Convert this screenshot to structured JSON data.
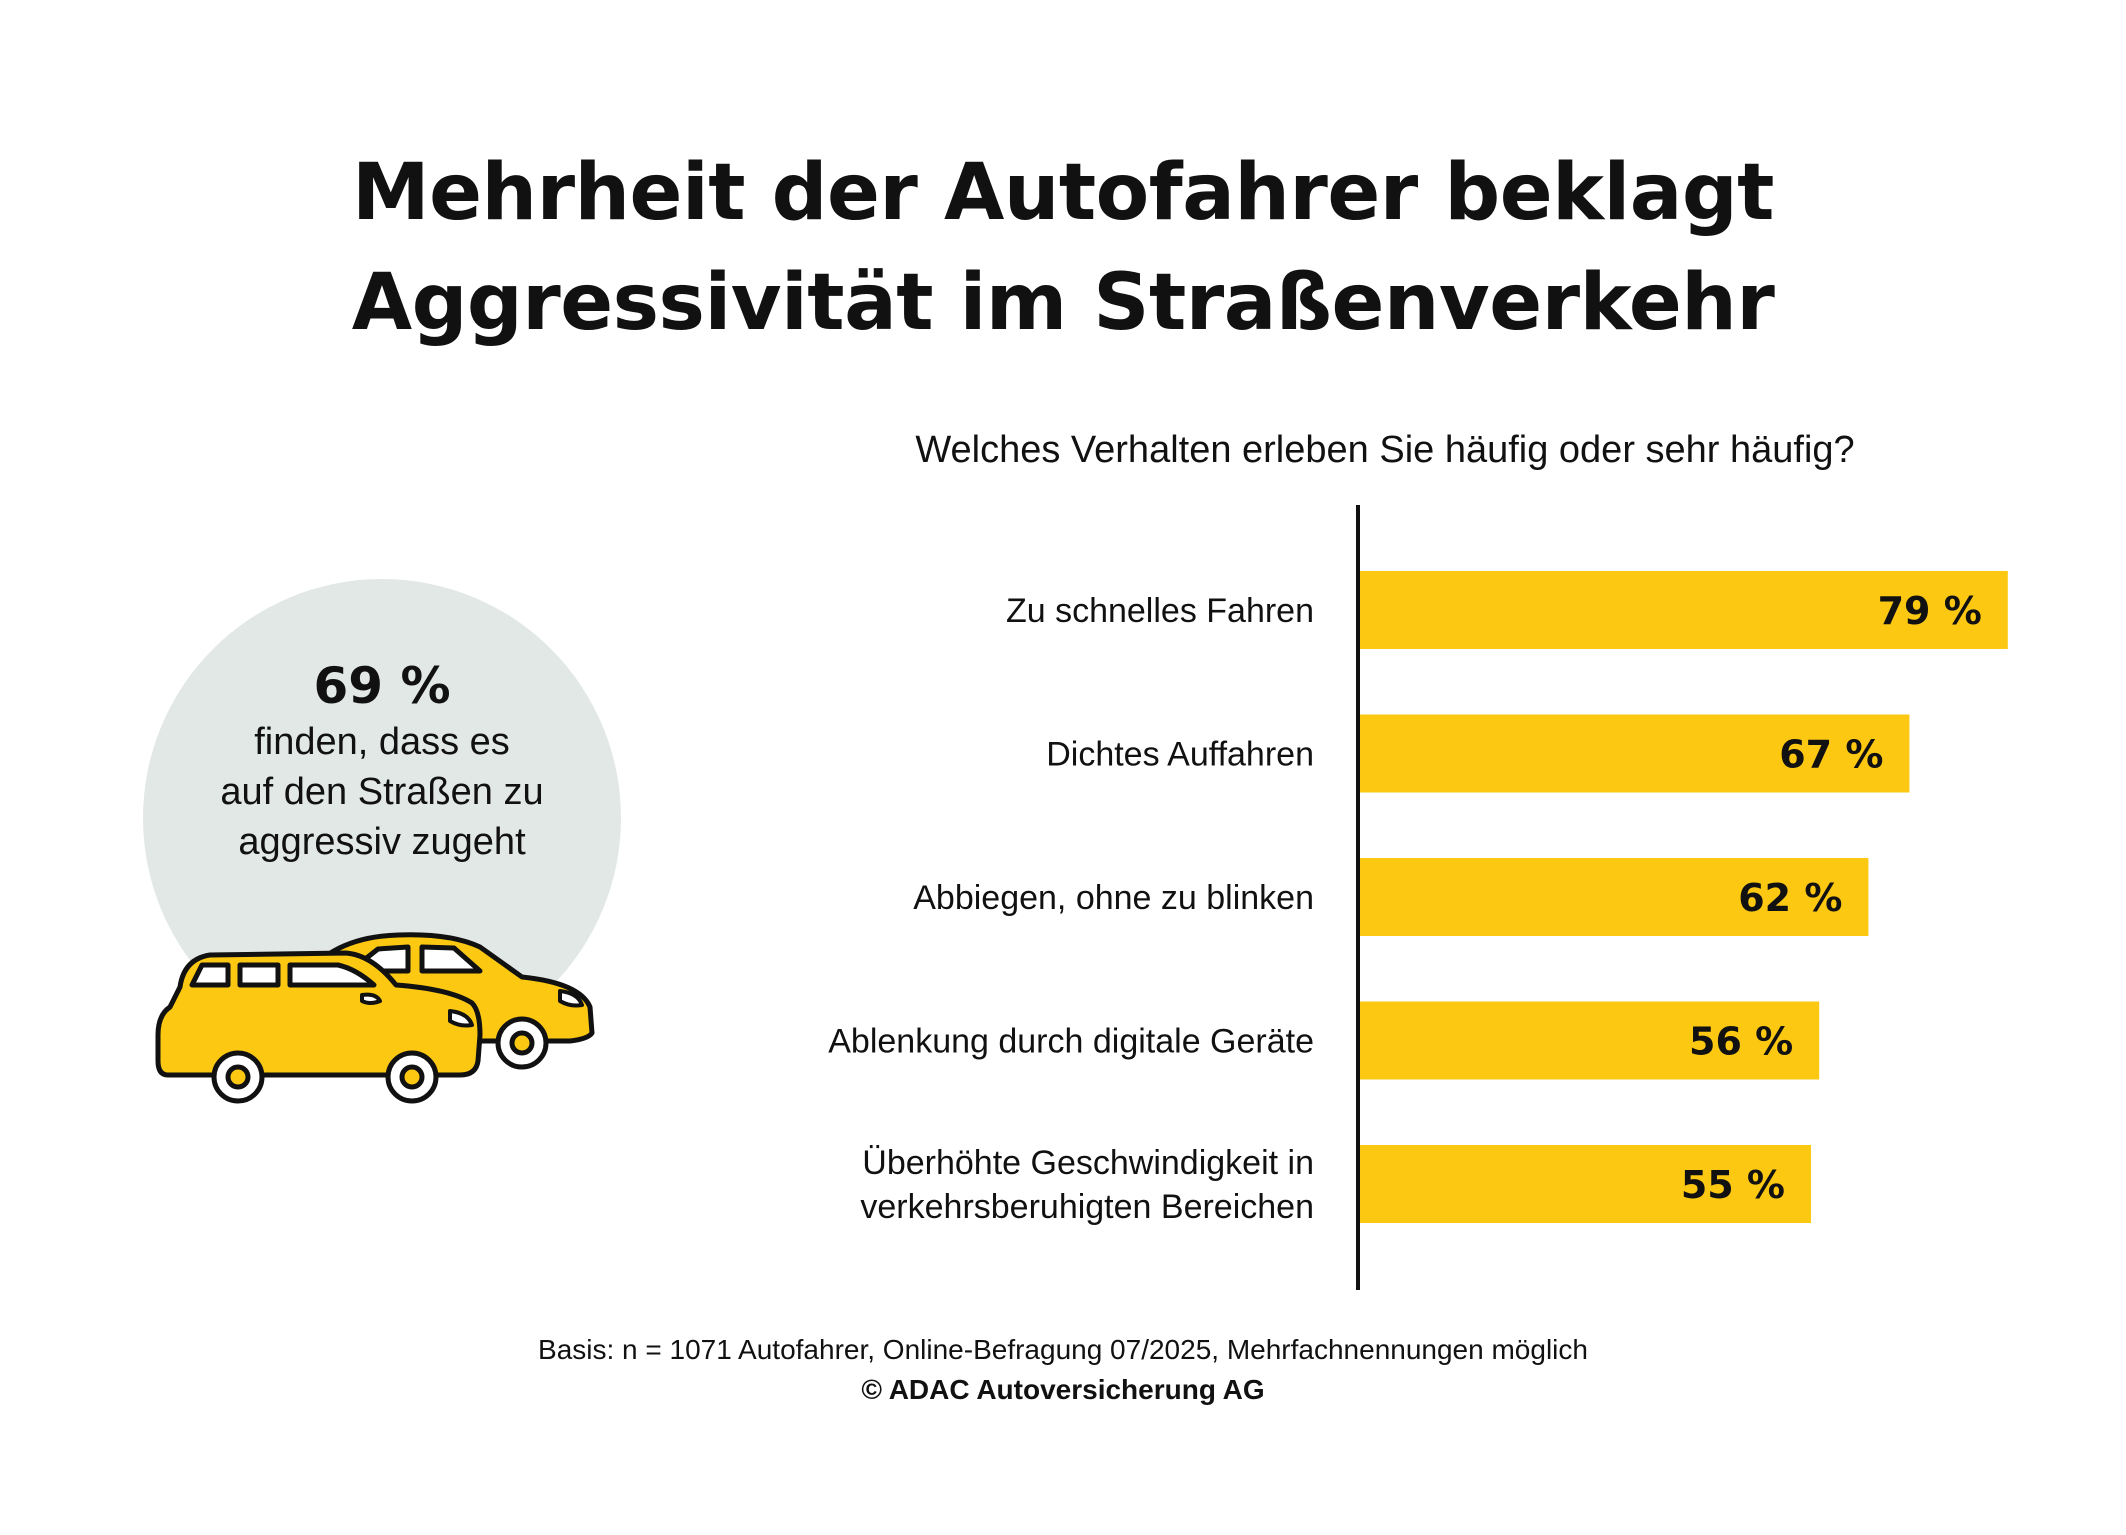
{
  "title": {
    "line1": "Mehrheit der Autofahrer beklagt",
    "line2": "Aggressivität im Straßenverkehr"
  },
  "callout": {
    "value": "69 %",
    "lines": [
      "finden, dass es",
      "auf den Straßen zu",
      "aggressiv zugeht"
    ],
    "circle_color": "#e1e8e5",
    "icon": "two-cars-icon"
  },
  "footer": {
    "basis": "Basis: n = 1071 Autofahrer, Online-Befragung 07/2025, Mehrfachnennungen möglich",
    "copyright": "© ADAC Autoversicherung AG"
  },
  "chart_data": {
    "type": "bar",
    "orientation": "horizontal",
    "title": "Welches Verhalten erleben Sie häufig oder sehr häufig?",
    "categories": [
      [
        "Zu schnelles Fahren"
      ],
      [
        "Dichtes Auffahren"
      ],
      [
        "Abbiegen, ohne zu blinken"
      ],
      [
        "Ablenkung durch digitale Geräte"
      ],
      [
        "Überhöhte Geschwindigkeit in",
        "verkehrsberuhigten Bereichen"
      ]
    ],
    "values": [
      79,
      67,
      62,
      56,
      55
    ],
    "value_labels": [
      "79 %",
      "67 %",
      "62 %",
      "56 %",
      "55 %"
    ],
    "unit": "%",
    "xlim": [
      0,
      100
    ],
    "grid": false,
    "bar_color": "#fcc811"
  }
}
